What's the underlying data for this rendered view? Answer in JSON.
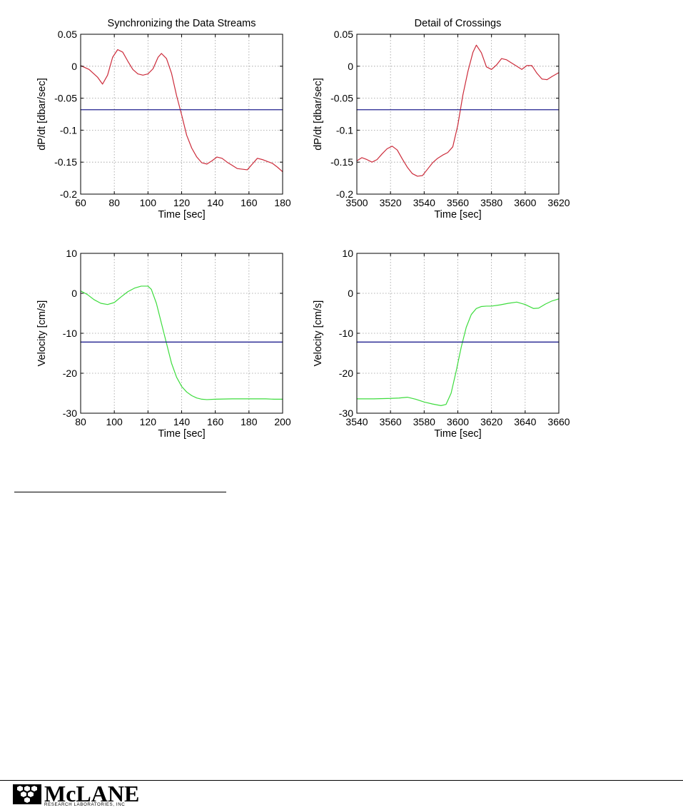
{
  "colors": {
    "red_series": "#cc2b3a",
    "green_series": "#3ddc3d",
    "threshold": "#20208f",
    "grid": "#9a9a9a"
  },
  "chart_data": [
    {
      "id": "top-left",
      "type": "line",
      "title": "Synchronizing the Data Streams",
      "xlabel": "Time [sec]",
      "ylabel": "dP/dt [dbar/sec]",
      "xlim": [
        60,
        180
      ],
      "ylim": [
        -0.2,
        0.05
      ],
      "xticks": [
        60,
        80,
        100,
        120,
        140,
        160,
        180
      ],
      "yticks": [
        -0.2,
        -0.15,
        -0.1,
        -0.05,
        0,
        0.05
      ],
      "yticklabels": [
        "-0.2",
        "-0.15",
        "-0.1",
        "-0.05",
        "0",
        "0.05"
      ],
      "grid": true,
      "series": [
        {
          "color": "red_series",
          "x": [
            60,
            65,
            70,
            73,
            76,
            79,
            82,
            85,
            88,
            91,
            94,
            97,
            100,
            103,
            106,
            108,
            111,
            114,
            117,
            120,
            123,
            126,
            129,
            132,
            135,
            138,
            141,
            144,
            147,
            150,
            153,
            156,
            159,
            162,
            165,
            168,
            171,
            174,
            177,
            180
          ],
          "y": [
            0.001,
            -0.005,
            -0.017,
            -0.028,
            -0.014,
            0.014,
            0.026,
            0.022,
            0.008,
            -0.005,
            -0.012,
            -0.014,
            -0.012,
            -0.004,
            0.014,
            0.02,
            0.012,
            -0.011,
            -0.046,
            -0.076,
            -0.108,
            -0.128,
            -0.142,
            -0.151,
            -0.153,
            -0.148,
            -0.142,
            -0.144,
            -0.15,
            -0.155,
            -0.16,
            -0.161,
            -0.162,
            -0.153,
            -0.144,
            -0.146,
            -0.149,
            -0.152,
            -0.158,
            -0.165
          ]
        },
        {
          "color": "threshold",
          "x": [
            60,
            180
          ],
          "y": [
            -0.068,
            -0.068
          ]
        }
      ]
    },
    {
      "id": "top-right",
      "type": "line",
      "title": "Detail of Crossings",
      "xlabel": "Time [sec]",
      "ylabel": "dP/dt [dbar/sec]",
      "xlim": [
        3500,
        3620
      ],
      "ylim": [
        -0.2,
        0.05
      ],
      "xticks": [
        3500,
        3520,
        3540,
        3560,
        3580,
        3600,
        3620
      ],
      "yticks": [
        -0.2,
        -0.15,
        -0.1,
        -0.05,
        0,
        0.05
      ],
      "yticklabels": [
        "-0.2",
        "-0.15",
        "-0.1",
        "-0.05",
        "0",
        "0.05"
      ],
      "grid": true,
      "series": [
        {
          "color": "red_series",
          "x": [
            3500,
            3503,
            3506,
            3509,
            3512,
            3515,
            3518,
            3521,
            3524,
            3527,
            3530,
            3533,
            3536,
            3539,
            3542,
            3545,
            3548,
            3551,
            3554,
            3557,
            3560,
            3563,
            3566,
            3569,
            3571,
            3574,
            3577,
            3580,
            3583,
            3586,
            3589,
            3592,
            3595,
            3598,
            3601,
            3604,
            3607,
            3610,
            3613,
            3616,
            3620
          ],
          "y": [
            -0.148,
            -0.143,
            -0.146,
            -0.15,
            -0.146,
            -0.137,
            -0.129,
            -0.125,
            -0.131,
            -0.145,
            -0.158,
            -0.168,
            -0.172,
            -0.171,
            -0.161,
            -0.151,
            -0.144,
            -0.139,
            -0.135,
            -0.126,
            -0.092,
            -0.045,
            -0.008,
            0.022,
            0.033,
            0.021,
            -0.001,
            -0.005,
            0.002,
            0.012,
            0.01,
            0.005,
            0.0,
            -0.005,
            0.001,
            0.001,
            -0.011,
            -0.02,
            -0.021,
            -0.016,
            -0.01
          ]
        },
        {
          "color": "threshold",
          "x": [
            3500,
            3620
          ],
          "y": [
            -0.068,
            -0.068
          ]
        }
      ]
    },
    {
      "id": "bottom-left",
      "type": "line",
      "title": "",
      "xlabel": "Time [sec]",
      "ylabel": "Velocity [cm/s]",
      "xlim": [
        80,
        200
      ],
      "ylim": [
        -30,
        10
      ],
      "xticks": [
        80,
        100,
        120,
        140,
        160,
        180,
        200
      ],
      "yticks": [
        -30,
        -20,
        -10,
        0,
        10
      ],
      "yticklabels": [
        "-30",
        "-20",
        "-10",
        "0",
        "10"
      ],
      "grid": true,
      "series": [
        {
          "color": "green_series",
          "x": [
            80,
            84,
            88,
            92,
            96,
            100,
            104,
            108,
            112,
            116,
            120,
            122,
            125,
            128,
            131,
            134,
            137,
            140,
            143,
            146,
            149,
            152,
            155,
            160,
            170,
            180,
            190,
            195,
            200
          ],
          "y": [
            0.6,
            -0.3,
            -1.6,
            -2.5,
            -2.8,
            -2.3,
            -0.9,
            0.4,
            1.3,
            1.8,
            1.8,
            1.0,
            -2.5,
            -7.5,
            -12.5,
            -17.5,
            -21.0,
            -23.3,
            -24.7,
            -25.6,
            -26.2,
            -26.5,
            -26.6,
            -26.5,
            -26.4,
            -26.4,
            -26.4,
            -26.5,
            -26.5
          ]
        },
        {
          "color": "threshold",
          "x": [
            80,
            200
          ],
          "y": [
            -12.2,
            -12.2
          ]
        }
      ]
    },
    {
      "id": "bottom-right",
      "type": "line",
      "title": "",
      "xlabel": "Time [sec]",
      "ylabel": "Velocity [cm/s]",
      "xlim": [
        3540,
        3660
      ],
      "ylim": [
        -30,
        10
      ],
      "xticks": [
        3540,
        3560,
        3580,
        3600,
        3620,
        3640,
        3660
      ],
      "yticks": [
        -30,
        -20,
        -10,
        0,
        10
      ],
      "yticklabels": [
        "-30",
        "-20",
        "-10",
        "0",
        "10"
      ],
      "grid": true,
      "series": [
        {
          "color": "green_series",
          "x": [
            3540,
            3550,
            3560,
            3565,
            3570,
            3575,
            3580,
            3585,
            3590,
            3593,
            3596,
            3599,
            3602,
            3605,
            3608,
            3611,
            3614,
            3617,
            3620,
            3625,
            3630,
            3635,
            3640,
            3645,
            3648,
            3652,
            3656,
            3660
          ],
          "y": [
            -26.4,
            -26.4,
            -26.3,
            -26.2,
            -26.0,
            -26.5,
            -27.2,
            -27.7,
            -28.1,
            -27.8,
            -25.0,
            -19.5,
            -13.5,
            -8.5,
            -5.3,
            -3.8,
            -3.3,
            -3.2,
            -3.2,
            -2.9,
            -2.5,
            -2.2,
            -2.8,
            -3.8,
            -3.7,
            -2.7,
            -1.9,
            -1.4
          ]
        },
        {
          "color": "threshold",
          "x": [
            3540,
            3660
          ],
          "y": [
            -12.2,
            -12.2
          ]
        }
      ]
    }
  ],
  "footer": {
    "logo_word": "McLANE",
    "logo_subtitle": "RESEARCH LABORATORIES, INC"
  }
}
